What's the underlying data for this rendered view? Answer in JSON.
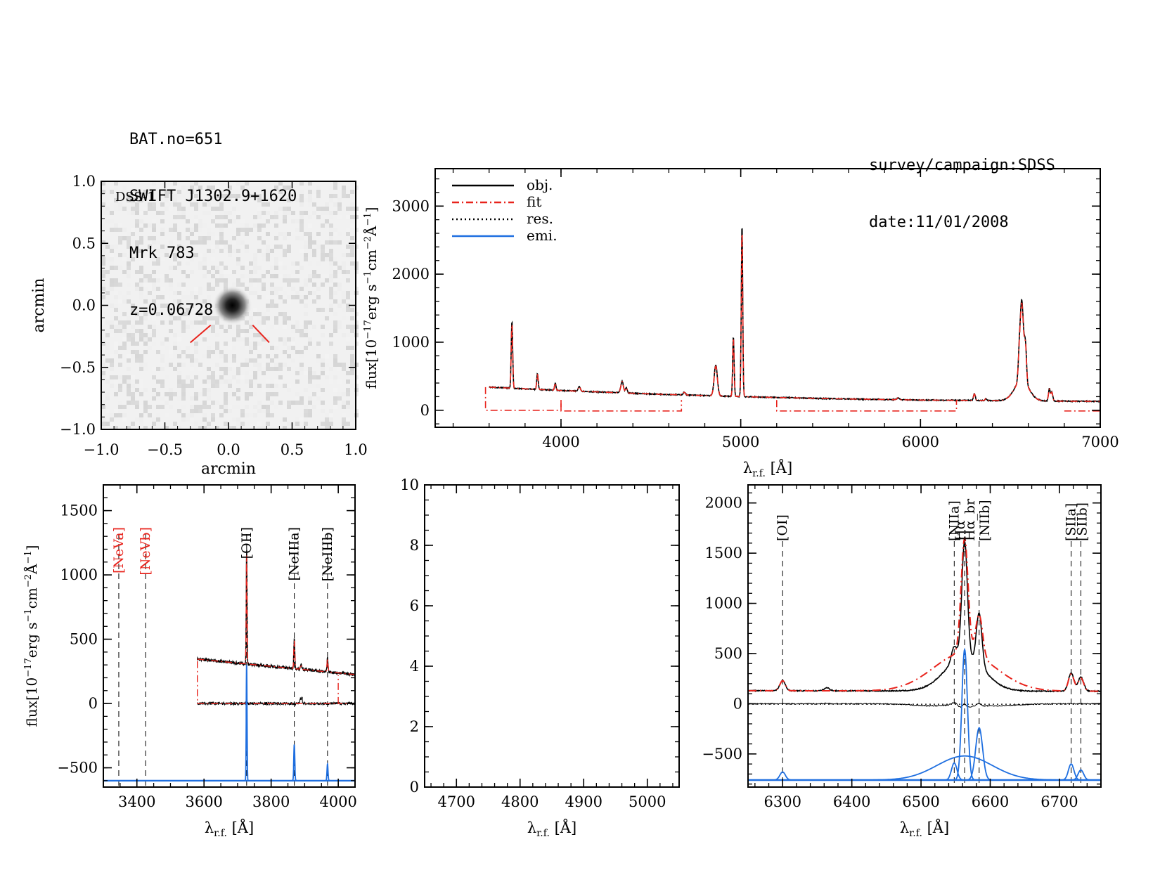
{
  "header_left": [
    "BAT.no=651",
    "SWIFT J1302.9+1620",
    "Mrk 783",
    "z=0.06728"
  ],
  "header_right": [
    "survey/campaign:SDSS",
    "date:11/01/2008"
  ],
  "colors": {
    "obj": "#000000",
    "fit": "#e8231c",
    "res": "#000000",
    "emi": "#1f6fe0",
    "marker": "#e8231c"
  },
  "image_panel": {
    "label": "DSS-1",
    "xlabel": "arcmin",
    "ylabel": "arcmin",
    "xticks": [
      "−1.0",
      "−0.5",
      "0.0",
      "0.5",
      "1.0"
    ],
    "yticks": [
      "1.0",
      "0.5",
      "0.0",
      "−0.5",
      "−1.0"
    ]
  },
  "chart_data": [
    {
      "id": "full",
      "type": "line",
      "xlabel": "λ_r.f. [Å]",
      "ylabel": "flux[10^-17 erg s^-1 cm^-2 Å^-1]",
      "xlim": [
        3300,
        7000
      ],
      "ylim": [
        -250,
        3550
      ],
      "xticks": [
        4000,
        5000,
        6000,
        7000
      ],
      "yticks": [
        0,
        1000,
        2000,
        3000
      ],
      "legend": {
        "position": "top-left",
        "entries": [
          "obj.",
          "fit",
          "res.",
          "emi."
        ]
      },
      "continuum": [
        [
          3600,
          340
        ],
        [
          4000,
          290
        ],
        [
          4500,
          240
        ],
        [
          5000,
          200
        ],
        [
          5500,
          170
        ],
        [
          6000,
          150
        ],
        [
          6500,
          140
        ],
        [
          7000,
          130
        ]
      ],
      "lines": [
        {
          "x": 3727,
          "h": 990,
          "w": 4
        },
        {
          "x": 3869,
          "h": 230,
          "w": 4
        },
        {
          "x": 3968,
          "h": 110,
          "w": 4
        },
        {
          "x": 4102,
          "h": 70,
          "w": 6
        },
        {
          "x": 4340,
          "h": 170,
          "w": 7
        },
        {
          "x": 4363,
          "h": 80,
          "w": 5
        },
        {
          "x": 4686,
          "h": 40,
          "w": 6
        },
        {
          "x": 4861,
          "h": 450,
          "w": 9
        },
        {
          "x": 4959,
          "h": 880,
          "w": 4
        },
        {
          "x": 5007,
          "h": 2540,
          "w": 4
        },
        {
          "x": 5876,
          "h": 30,
          "w": 6
        },
        {
          "x": 6300,
          "h": 100,
          "w": 5
        },
        {
          "x": 6364,
          "h": 30,
          "w": 5
        },
        {
          "x": 6563,
          "h": 1180,
          "w": 10
        },
        {
          "x": 6563,
          "h": 300,
          "w": 40
        },
        {
          "x": 6584,
          "h": 500,
          "w": 6
        },
        {
          "x": 6548,
          "h": 150,
          "w": 5
        },
        {
          "x": 6717,
          "h": 180,
          "w": 5
        },
        {
          "x": 6731,
          "h": 130,
          "w": 5
        }
      ],
      "fit_breaks": [
        {
          "x0": 3580,
          "x1": 4000,
          "hi": 340,
          "lo": 0,
          "edges": true
        },
        {
          "x0": 4000,
          "x1": 4670,
          "lo": -10,
          "edges": true
        },
        {
          "x0": 5200,
          "x1": 6200,
          "lo": -10,
          "edges": true
        },
        {
          "x0": 6800,
          "x1": 7000,
          "lo": -10,
          "edges": false
        }
      ]
    },
    {
      "id": "blue",
      "type": "line",
      "xlabel": "λ_r.f. [Å]",
      "ylabel": "flux[10^-17 erg s^-1 cm^-2 Å^-1]",
      "xlim": [
        3300,
        4050
      ],
      "ylim": [
        -650,
        1700
      ],
      "xticks": [
        3400,
        3600,
        3800,
        4000
      ],
      "yticks": [
        -500,
        0,
        500,
        1000,
        1500
      ],
      "line_markers": [
        {
          "x": 3346,
          "label": "[NeVa]",
          "red": true
        },
        {
          "x": 3426,
          "label": "[NeVb]",
          "red": true
        },
        {
          "x": 3727,
          "label": "[OII]",
          "red": false
        },
        {
          "x": 3869,
          "label": "[NeIIIa]",
          "red": false
        },
        {
          "x": 3968,
          "label": "[NeIIIb]",
          "red": false
        }
      ],
      "obj_range": [
        3580,
        4050
      ],
      "continuum": [
        [
          3580,
          345
        ],
        [
          4050,
          225
        ]
      ],
      "lines": [
        {
          "x": 3727,
          "h": 900,
          "w": 1.2
        },
        {
          "x": 3869,
          "h": 230,
          "w": 1.5
        },
        {
          "x": 3968,
          "h": 110,
          "w": 1.5
        },
        {
          "x": 3889,
          "h": 40,
          "w": 2
        }
      ],
      "emi_base": -600,
      "emi_lines": [
        {
          "x": 3727,
          "h": 900,
          "w": 1.2
        },
        {
          "x": 3869,
          "h": 280,
          "w": 1.5
        },
        {
          "x": 3968,
          "h": 130,
          "w": 1.5
        }
      ]
    },
    {
      "id": "middle",
      "type": "line",
      "xlabel": "λ_r.f. [Å]",
      "xlim": [
        4650,
        5050
      ],
      "ylim": [
        0,
        10
      ],
      "xticks": [
        4700,
        4800,
        4900,
        5000
      ],
      "yticks": [
        0,
        2,
        4,
        6,
        8,
        10
      ]
    },
    {
      "id": "red",
      "type": "line",
      "xlabel": "λ_r.f. [Å]",
      "xlim": [
        6250,
        6760
      ],
      "ylim": [
        -830,
        2180
      ],
      "xticks": [
        6300,
        6400,
        6500,
        6600,
        6700
      ],
      "yticks": [
        -500,
        0,
        500,
        1000,
        1500,
        2000
      ],
      "line_markers": [
        {
          "x": 6300,
          "label": "[OI]"
        },
        {
          "x": 6548,
          "label": "[NIIa]"
        },
        {
          "x": 6563,
          "label": "Hα"
        },
        {
          "x": 6563,
          "label": "Hα_br"
        },
        {
          "x": 6584,
          "label": "[NIIb]"
        },
        {
          "x": 6717,
          "label": "[SIIa]"
        },
        {
          "x": 6731,
          "label": "[SIIb]"
        }
      ],
      "continuum": [
        [
          6250,
          130
        ],
        [
          6760,
          125
        ]
      ],
      "obj_lines": [
        {
          "x": 6300,
          "h": 100,
          "w": 4
        },
        {
          "x": 6364,
          "h": 30,
          "w": 4
        },
        {
          "x": 6548,
          "h": 150,
          "w": 4
        },
        {
          "x": 6563,
          "h": 1150,
          "w": 4
        },
        {
          "x": 6563,
          "h": 340,
          "w": 28
        },
        {
          "x": 6584,
          "h": 520,
          "w": 4
        },
        {
          "x": 6717,
          "h": 180,
          "w": 4
        },
        {
          "x": 6731,
          "h": 140,
          "w": 4
        }
      ],
      "fit_lines": [
        {
          "x": 6300,
          "h": 100,
          "w": 4
        },
        {
          "x": 6563,
          "h": 1140,
          "w": 5
        },
        {
          "x": 6563,
          "h": 380,
          "w": 45
        },
        {
          "x": 6584,
          "h": 420,
          "w": 5
        },
        {
          "x": 6717,
          "h": 170,
          "w": 4
        },
        {
          "x": 6731,
          "h": 130,
          "w": 4
        }
      ],
      "emi_base": -760,
      "emi_lines": [
        {
          "x": 6300,
          "h": 80,
          "w": 4
        },
        {
          "x": 6548,
          "h": 170,
          "w": 4
        },
        {
          "x": 6563,
          "h": 1300,
          "w": 4
        },
        {
          "x": 6563,
          "h": 240,
          "w": 40
        },
        {
          "x": 6584,
          "h": 520,
          "w": 5
        },
        {
          "x": 6717,
          "h": 160,
          "w": 4
        },
        {
          "x": 6731,
          "h": 100,
          "w": 4
        }
      ]
    }
  ]
}
